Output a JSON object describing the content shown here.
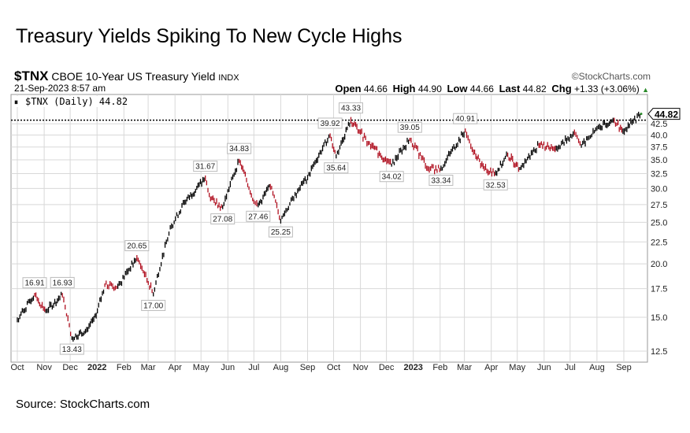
{
  "title": "Treasury Yields Spiking To New Cycle Highs",
  "source": "Source: StockCharts.com",
  "header": {
    "symbol": "$TNX",
    "name": "CBOE 10-Year US Treasury Yield",
    "exchange": "INDX",
    "datetime": "21-Sep-2023 8:57 am",
    "brand": "©StockCharts.com",
    "open_label": "Open",
    "open": "44.66",
    "high_label": "High",
    "high": "44.90",
    "low_label": "Low",
    "low": "44.66",
    "last_label": "Last",
    "last": "44.82",
    "chg_label": "Chg",
    "chg": "+1.33 (+3.06%)"
  },
  "legend": "$TNX (Daily) 44.82",
  "colors": {
    "up": "#000000",
    "down": "#b01020",
    "grid": "#d8d8d8"
  },
  "chart_data": {
    "type": "line",
    "title": "$TNX (Daily)",
    "xlabel": "",
    "ylabel": "",
    "yscale": "log",
    "ylim": [
      12,
      47
    ],
    "grid": true,
    "legend": "top-left",
    "yticks": [
      "12.5",
      "15.0",
      "17.5",
      "20.0",
      "22.5",
      "25.0",
      "27.5",
      "30.0",
      "32.5",
      "35.0",
      "37.5",
      "40.0",
      "42.5"
    ],
    "xticks": [
      {
        "label": "Oct",
        "date": "2021-10-01"
      },
      {
        "label": "Nov",
        "date": "2021-11-01"
      },
      {
        "label": "Dec",
        "date": "2021-12-01"
      },
      {
        "label": "2022",
        "date": "2022-01-01",
        "bold": true
      },
      {
        "label": "Feb",
        "date": "2022-02-01"
      },
      {
        "label": "Mar",
        "date": "2022-03-01"
      },
      {
        "label": "Apr",
        "date": "2022-04-01"
      },
      {
        "label": "May",
        "date": "2022-05-01"
      },
      {
        "label": "Jun",
        "date": "2022-06-01"
      },
      {
        "label": "Jul",
        "date": "2022-07-01"
      },
      {
        "label": "Aug",
        "date": "2022-08-01"
      },
      {
        "label": "Sep",
        "date": "2022-09-01"
      },
      {
        "label": "Oct",
        "date": "2022-10-01"
      },
      {
        "label": "Nov",
        "date": "2022-11-01"
      },
      {
        "label": "Dec",
        "date": "2022-12-01"
      },
      {
        "label": "2023",
        "date": "2023-01-01",
        "bold": true
      },
      {
        "label": "Feb",
        "date": "2023-02-01"
      },
      {
        "label": "Mar",
        "date": "2023-03-01"
      },
      {
        "label": "Apr",
        "date": "2023-04-01"
      },
      {
        "label": "May",
        "date": "2023-05-01"
      },
      {
        "label": "Jun",
        "date": "2023-06-01"
      },
      {
        "label": "Jul",
        "date": "2023-07-01"
      },
      {
        "label": "Aug",
        "date": "2023-08-01"
      },
      {
        "label": "Sep",
        "date": "2023-09-01"
      }
    ],
    "series": [
      {
        "name": "$TNX",
        "points": [
          [
            "2021-10-01",
            14.8
          ],
          [
            "2021-10-21",
            16.91
          ],
          [
            "2021-11-03",
            15.5
          ],
          [
            "2021-11-22",
            16.93
          ],
          [
            "2021-11-30",
            14.4
          ],
          [
            "2021-12-03",
            13.43
          ],
          [
            "2021-12-20",
            14.0
          ],
          [
            "2021-12-31",
            15.1
          ],
          [
            "2022-01-10",
            17.8
          ],
          [
            "2022-01-25",
            17.7
          ],
          [
            "2022-02-16",
            20.65
          ],
          [
            "2022-03-07",
            17.0
          ],
          [
            "2022-03-28",
            24.5
          ],
          [
            "2022-04-12",
            27.8
          ],
          [
            "2022-05-06",
            31.67
          ],
          [
            "2022-05-12",
            28.5
          ],
          [
            "2022-05-26",
            27.08
          ],
          [
            "2022-06-14",
            34.83
          ],
          [
            "2022-07-01",
            28.0
          ],
          [
            "2022-07-06",
            27.46
          ],
          [
            "2022-07-20",
            30.3
          ],
          [
            "2022-08-01",
            25.25
          ],
          [
            "2022-08-22",
            29.9
          ],
          [
            "2022-09-01",
            31.9
          ],
          [
            "2022-09-27",
            39.92
          ],
          [
            "2022-10-04",
            35.64
          ],
          [
            "2022-10-21",
            43.33
          ],
          [
            "2022-11-01",
            40.6
          ],
          [
            "2022-11-10",
            38.2
          ],
          [
            "2022-12-07",
            34.02
          ],
          [
            "2022-12-28",
            39.05
          ],
          [
            "2023-01-18",
            33.5
          ],
          [
            "2023-02-02",
            33.34
          ],
          [
            "2023-03-02",
            40.91
          ],
          [
            "2023-03-10",
            36.9
          ],
          [
            "2023-03-24",
            33.4
          ],
          [
            "2023-04-06",
            32.53
          ],
          [
            "2023-04-20",
            35.9
          ],
          [
            "2023-05-04",
            33.4
          ],
          [
            "2023-05-26",
            38.0
          ],
          [
            "2023-06-15",
            37.2
          ],
          [
            "2023-07-06",
            40.5
          ],
          [
            "2023-07-14",
            37.7
          ],
          [
            "2023-08-04",
            41.9
          ],
          [
            "2023-08-21",
            43.4
          ],
          [
            "2023-08-31",
            40.9
          ],
          [
            "2023-09-12",
            43.1
          ],
          [
            "2023-09-21",
            44.82
          ]
        ]
      }
    ],
    "reference_line": 43.33,
    "last_value": "44.82",
    "annotations": [
      {
        "date": "2021-10-21",
        "value": 16.91,
        "text": "16.91",
        "pos": "above"
      },
      {
        "date": "2021-11-22",
        "value": 16.93,
        "text": "16.93",
        "pos": "above"
      },
      {
        "date": "2021-12-03",
        "value": 13.43,
        "text": "13.43",
        "pos": "below"
      },
      {
        "date": "2022-02-16",
        "value": 20.65,
        "text": "20.65",
        "pos": "above"
      },
      {
        "date": "2022-03-07",
        "value": 17.0,
        "text": "17.00",
        "pos": "below"
      },
      {
        "date": "2022-05-06",
        "value": 31.67,
        "text": "31.67",
        "pos": "above"
      },
      {
        "date": "2022-05-26",
        "value": 27.08,
        "text": "27.08",
        "pos": "below"
      },
      {
        "date": "2022-06-14",
        "value": 34.83,
        "text": "34.83",
        "pos": "above"
      },
      {
        "date": "2022-07-06",
        "value": 27.46,
        "text": "27.46",
        "pos": "below"
      },
      {
        "date": "2022-08-01",
        "value": 25.25,
        "text": "25.25",
        "pos": "below"
      },
      {
        "date": "2022-09-27",
        "value": 39.92,
        "text": "39.92",
        "pos": "above"
      },
      {
        "date": "2022-10-04",
        "value": 35.64,
        "text": "35.64",
        "pos": "below"
      },
      {
        "date": "2022-10-21",
        "value": 43.33,
        "text": "43.33",
        "pos": "above"
      },
      {
        "date": "2022-12-07",
        "value": 34.02,
        "text": "34.02",
        "pos": "below"
      },
      {
        "date": "2022-12-28",
        "value": 39.05,
        "text": "39.05",
        "pos": "above"
      },
      {
        "date": "2023-02-02",
        "value": 33.34,
        "text": "33.34",
        "pos": "below"
      },
      {
        "date": "2023-03-02",
        "value": 40.91,
        "text": "40.91",
        "pos": "above"
      },
      {
        "date": "2023-04-06",
        "value": 32.53,
        "text": "32.53",
        "pos": "below"
      }
    ]
  }
}
